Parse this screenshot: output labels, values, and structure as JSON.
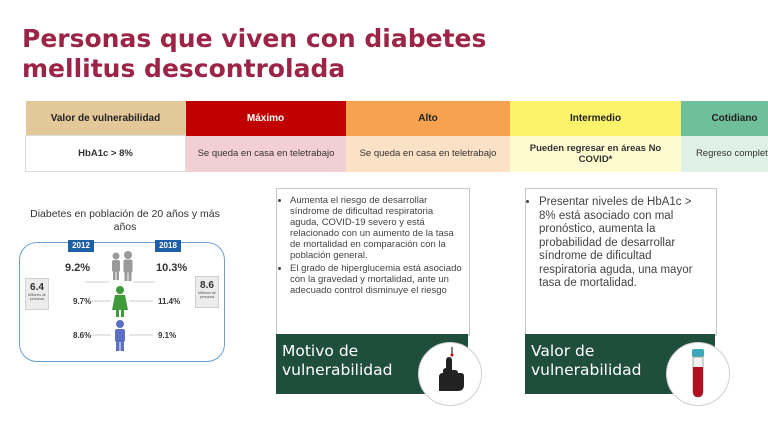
{
  "slide": {
    "title_line1": "Personas que viven con diabetes",
    "title_line2": "mellitus descontrolada"
  },
  "colors": {
    "title": "#9d2449",
    "maximo": "#c00000",
    "alto": "#f7a24f",
    "intermedio": "#fdf36b",
    "cotidiano": "#6fbf9a",
    "caption_band": "#1f4e3d"
  },
  "table": {
    "headers": [
      "Valor de vulnerabilidad",
      "Máximo",
      "Alto",
      "Intermedio",
      "Cotidiano"
    ],
    "row": [
      "HbA1c > 8%",
      "Se queda en casa en teletrabajo",
      "Se queda en casa en teletrabajo",
      "Pueden regresar en áreas  No COVID*",
      "Regreso completo"
    ]
  },
  "infographic": {
    "title": "Diabetes en población de 20 años y más años",
    "year_left": "2012",
    "year_right": "2018",
    "left_pcts": [
      "9.2%",
      "9.7%",
      "8.6%"
    ],
    "right_pcts": [
      "10.3%",
      "11.4%",
      "9.1%"
    ],
    "left_total": "6.4",
    "left_total_label": "Millones de personas",
    "right_total": "8.6",
    "right_total_label": "Millones de personas",
    "icons": [
      "family-icon",
      "female-icon",
      "male-icon"
    ]
  },
  "motive_card": {
    "bullets": [
      "Aumenta el riesgo de desarrollar síndrome de dificultad respiratoria aguda, COVID-19 severo y está relacionado con un aumento de la tasa de mortalidad en comparación con la población general.",
      "El grado de hiperglucemia está asociado con la gravedad y mortalidad, ante un adecuado control disminuye el riesgo"
    ],
    "caption": "Motivo de vulnerabilidad",
    "icon": "finger-prick-icon"
  },
  "value_card": {
    "bullets": [
      "Presentar niveles de HbA1c > 8% está asociado con mal pronóstico, aumenta la probabilidad de desarrollar síndrome de dificultad respiratoria aguda, una mayor tasa de mortalidad."
    ],
    "caption": "Valor de vulnerabilidad",
    "icon": "blood-tube-icon"
  }
}
